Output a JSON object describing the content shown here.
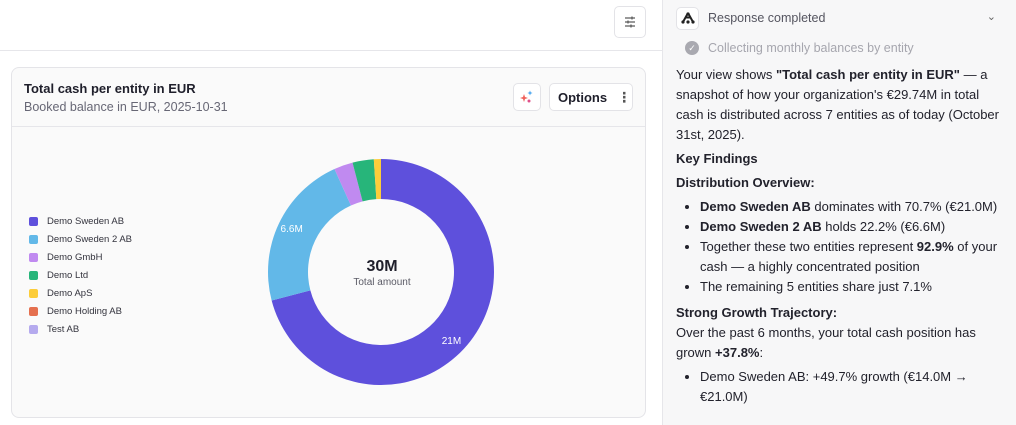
{
  "toolbar": {
    "filter_icon": "sliders-icon"
  },
  "card": {
    "title": "Total cash per entity in EUR",
    "subtitle": "Booked balance in EUR, 2025-10-31",
    "ai_icon": "sparkles-icon",
    "options_label": "Options",
    "options_icon": "vertical-dots-icon"
  },
  "chart_data": {
    "type": "pie",
    "variant": "donut",
    "title": "Total cash per entity in EUR",
    "subtitle": "Booked balance in EUR, 2025-10-31",
    "center_value": "30M",
    "center_label": "Total amount",
    "legend_position": "left",
    "unit": "EUR millions",
    "slices": [
      {
        "name": "Demo Sweden AB",
        "value": 21.0,
        "label": "21M",
        "color": "#5e50dc"
      },
      {
        "name": "Demo Sweden 2 AB",
        "value": 6.6,
        "label": "6.6M",
        "color": "#62b8e8"
      },
      {
        "name": "Demo GmbH",
        "value": 0.8,
        "label": "",
        "color": "#c08af0"
      },
      {
        "name": "Demo Ltd",
        "value": 0.9,
        "label": "",
        "color": "#27b57a"
      },
      {
        "name": "Demo ApS",
        "value": 0.3,
        "label": "",
        "color": "#fccd3a"
      },
      {
        "name": "Demo Holding AB",
        "value": 0.0,
        "label": "",
        "color": "#e5704f"
      },
      {
        "name": "Test AB",
        "value": 0.0,
        "label": "",
        "color": "#b5aaee"
      }
    ]
  },
  "assistant": {
    "status": "Response completed",
    "step": "Collecting monthly balances by entity",
    "intro_pre": "Your view shows ",
    "intro_bold": "\"Total cash per entity in EUR\"",
    "intro_post": " — a snapshot of how your organization's €29.74M in total cash is distributed across 7 entities as of today (October 31st, 2025).",
    "key_findings": "Key Findings",
    "distribution_heading": "Distribution Overview:",
    "distribution": [
      {
        "bold": "Demo Sweden AB",
        "text": " dominates with 70.7% (€21.0M)"
      },
      {
        "bold": "Demo Sweden 2 AB",
        "text": " holds 22.2% (€6.6M)"
      },
      {
        "pre": "Together these two entities represent ",
        "bold": "92.9%",
        "text": " of your cash — a highly concentrated position"
      },
      {
        "pre": "The remaining 5 entities share just 7.1%",
        "bold": "",
        "text": ""
      }
    ],
    "growth_heading": "Strong Growth Trajectory:",
    "growth_pre": "Over the past 6 months, your total cash position has grown ",
    "growth_bold": "+37.8%",
    "growth_post": ":",
    "growth_items": [
      "Demo Sweden AB: +49.7% growth (€14.0M → €21.0M)"
    ]
  }
}
